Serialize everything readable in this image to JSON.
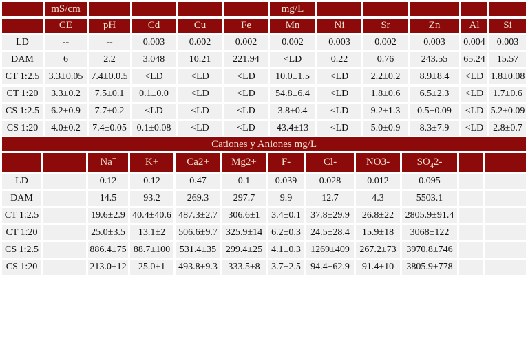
{
  "colors": {
    "header_bg": "#8C0A0A",
    "header_text": "#F0E2D2",
    "cell_bg": "#F0F0F0",
    "cell_text": "#111111",
    "page_bg": "#FFFFFF"
  },
  "metals_table": {
    "unit_row": [
      "",
      "mS/cm",
      "",
      "",
      "",
      "",
      "mg/L",
      "",
      "",
      "",
      "",
      ""
    ],
    "columns": [
      "",
      "CE",
      "pH",
      "Cd",
      "Cu",
      "Fe",
      "Mn",
      "Ni",
      "Sr",
      "Zn",
      "Al",
      "Si"
    ],
    "rows": [
      {
        "label": "LD",
        "values": [
          "--",
          "--",
          "0.003",
          "0.002",
          "0.002",
          "0.002",
          "0.003",
          "0.002",
          "0.003",
          "0.004",
          "0.003"
        ]
      },
      {
        "label": "DAM",
        "values": [
          "6",
          "2.2",
          "3.048",
          "10.21",
          "221.94",
          "<LD",
          "0.22",
          "0.76",
          "243.55",
          "65.24",
          "15.57"
        ]
      },
      {
        "label": "CT 1:2.5",
        "values": [
          "3.3±0.05",
          "7.4±0.0.5",
          "<LD",
          "<LD",
          "<LD",
          "10.0±1.5",
          "<LD",
          "2.2±0.2",
          "8.9±8.4",
          "<LD",
          "1.8±0.08"
        ]
      },
      {
        "label": "CT 1:20",
        "values": [
          "3.3±0.2",
          "7.5±0.1",
          "0.1±0.0",
          "<LD",
          "<LD",
          "54.8±6.4",
          "<LD",
          "1.8±0.6",
          "6.5±2.3",
          "<LD",
          "1.7±0.6"
        ]
      },
      {
        "label": "CS 1:2.5",
        "values": [
          "6.2±0.9",
          "7.7±0.2",
          "<LD",
          "<LD",
          "<LD",
          "3.8±0.4",
          "<LD",
          "9.2±1.3",
          "0.5±0.09",
          "<LD",
          "5.2±0.09"
        ]
      },
      {
        "label": "CS 1:20",
        "values": [
          "4.0±0.2",
          "7.4±0.05",
          "0.1±0.08",
          "<LD",
          "<LD",
          "43.4±13",
          "<LD",
          "5.0±0.9",
          "8.3±7.9",
          "<LD",
          "2.8±0.7"
        ]
      }
    ]
  },
  "ions_table": {
    "title": "Cationes y Aniones mg/L",
    "columns": [
      {
        "text": ""
      },
      {
        "text": ""
      },
      {
        "pre": "Na",
        "sup": "+"
      },
      {
        "text": "K+"
      },
      {
        "text": "Ca2+"
      },
      {
        "text": "Mg2+"
      },
      {
        "text": "F-"
      },
      {
        "text": "Cl-"
      },
      {
        "text": "NO3-"
      },
      {
        "pre": "SO",
        "sub": "4",
        "post": "2-"
      },
      {
        "text": ""
      },
      {
        "text": ""
      }
    ],
    "rows": [
      {
        "label": "LD",
        "values": [
          "",
          "0.12",
          "0.12",
          "0.47",
          "0.1",
          "0.039",
          "0.028",
          "0.012",
          "0.095",
          "",
          ""
        ]
      },
      {
        "label": "DAM",
        "values": [
          "",
          "14.5",
          "93.2",
          "269.3",
          "297.7",
          "9.9",
          "12.7",
          "4.3",
          "5503.1",
          "",
          ""
        ]
      },
      {
        "label": "CT 1:2.5",
        "values": [
          "",
          "19.6±2.9",
          "40.4±40.6",
          "487.3±2.7",
          "306.6±1",
          "3.4±0.1",
          "37.8±29.9",
          "26.8±22",
          "2805.9±91.4",
          "",
          ""
        ]
      },
      {
        "label": "CT 1:20",
        "values": [
          "",
          "25.0±3.5",
          "13.1±2",
          "506.6±9.7",
          "325.9±14",
          "6.2±0.3",
          "24.5±28.4",
          "15.9±18",
          "3068±122",
          "",
          ""
        ]
      },
      {
        "label": "CS 1:2.5",
        "values": [
          "",
          "886.4±75",
          "88.7±100",
          "531.4±35",
          "299.4±25",
          "4.1±0.3",
          "1269±409",
          "267.2±73",
          "3970.8±746",
          "",
          ""
        ]
      },
      {
        "label": "CS 1:20",
        "values": [
          "",
          "213.0±12",
          "25.0±1",
          "493.8±9.3",
          "333.5±8",
          "3.7±2.5",
          "94.4±62.9",
          "91.4±10",
          "3805.9±778",
          "",
          ""
        ]
      }
    ]
  }
}
